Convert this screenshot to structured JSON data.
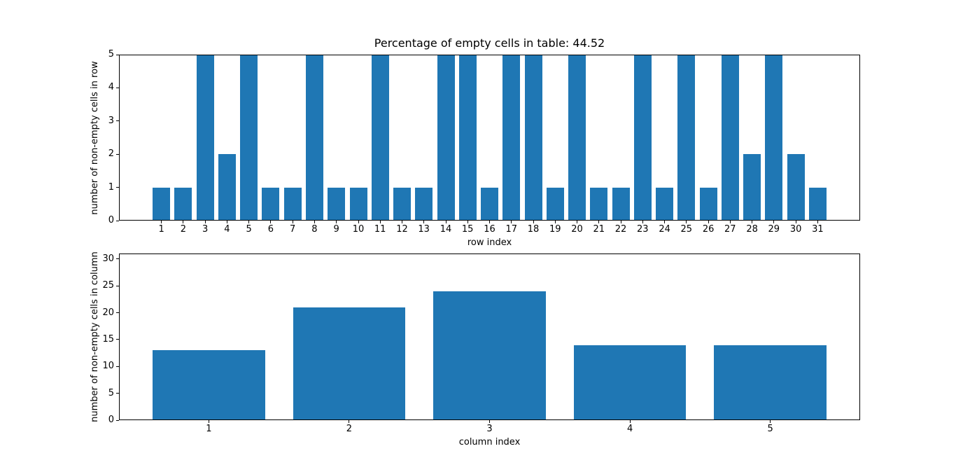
{
  "figure": {
    "background": "#ffffff"
  },
  "chart_data": [
    {
      "type": "bar",
      "title": "Percentage of empty cells in table: 44.52",
      "xlabel": "row index",
      "ylabel": "number of non-empty cells in row",
      "categories": [
        1,
        2,
        3,
        4,
        5,
        6,
        7,
        8,
        9,
        10,
        11,
        12,
        13,
        14,
        15,
        16,
        17,
        18,
        19,
        20,
        21,
        22,
        23,
        24,
        25,
        26,
        27,
        28,
        29,
        30,
        31
      ],
      "values": [
        1,
        1,
        5,
        2,
        5,
        1,
        1,
        5,
        1,
        1,
        5,
        1,
        1,
        5,
        5,
        1,
        5,
        5,
        1,
        5,
        1,
        1,
        5,
        1,
        5,
        1,
        5,
        2,
        5,
        2,
        1
      ],
      "xlim": [
        -0.94,
        32.94
      ],
      "ylim": [
        0,
        5
      ],
      "yticks": [
        0,
        1,
        2,
        3,
        4,
        5
      ],
      "bar_width": 0.8,
      "bar_color": "#1f77b4",
      "grid": false
    },
    {
      "type": "bar",
      "title": "",
      "xlabel": "column index",
      "ylabel": "number of non-empty cells in column",
      "categories": [
        1,
        2,
        3,
        4,
        5
      ],
      "values": [
        13,
        21,
        24,
        14,
        14
      ],
      "xlim": [
        0.36,
        5.64
      ],
      "ylim": [
        0,
        31
      ],
      "yticks": [
        0,
        5,
        10,
        15,
        20,
        25,
        30
      ],
      "bar_width": 0.8,
      "bar_color": "#1f77b4",
      "grid": false
    }
  ]
}
